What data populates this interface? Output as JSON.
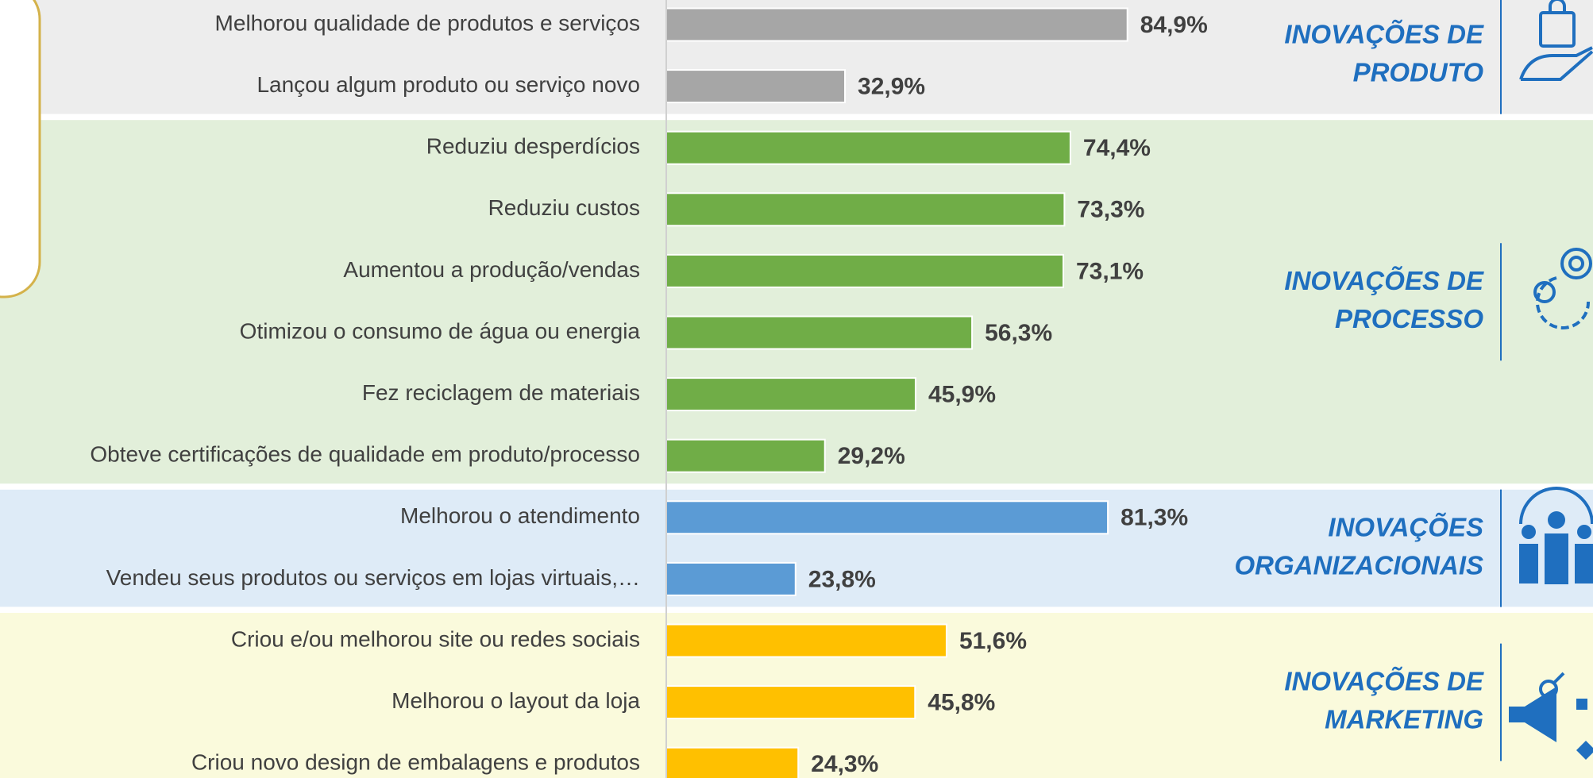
{
  "chart_data": {
    "type": "bar",
    "orientation": "horizontal",
    "xlim": [
      0,
      100
    ],
    "groups": [
      {
        "label_lines": [
          "INOVAÇÕES DE",
          "PRODUTO"
        ],
        "color": "#a6a6a6",
        "background": "#ededed",
        "categories": [
          "Melhorou qualidade de produtos e serviços",
          "Lançou algum produto ou serviço novo"
        ],
        "values": [
          84.9,
          32.9
        ],
        "value_labels": [
          "84,9%",
          "32,9%"
        ]
      },
      {
        "label_lines": [
          "INOVAÇÕES DE",
          "PROCESSO"
        ],
        "color": "#70ad47",
        "background": "#e2efda",
        "categories": [
          "Reduziu desperdícios",
          "Reduziu custos",
          "Aumentou a produção/vendas",
          "Otimizou o consumo de água ou energia",
          "Fez reciclagem de materiais",
          "Obteve certificações de qualidade em produto/processo"
        ],
        "values": [
          74.4,
          73.3,
          73.1,
          56.3,
          45.9,
          29.2
        ],
        "value_labels": [
          "74,4%",
          "73,3%",
          "73,1%",
          "56,3%",
          "45,9%",
          "29,2%"
        ]
      },
      {
        "label_lines": [
          "INOVAÇÕES",
          "ORGANIZACIONAIS"
        ],
        "color": "#5b9bd5",
        "background": "#deebf7",
        "categories": [
          "Melhorou o atendimento",
          "Vendeu seus produtos ou serviços em lojas virtuais,…"
        ],
        "values": [
          81.3,
          23.8
        ],
        "value_labels": [
          "81,3%",
          "23,8%"
        ]
      },
      {
        "label_lines": [
          "INOVAÇÕES DE",
          "MARKETING"
        ],
        "color": "#ffc000",
        "background": "#fafadc",
        "categories": [
          "Criou e/ou melhorou site ou redes sociais",
          "Melhorou o layout da loja",
          "Criou novo design de embalagens e produtos"
        ],
        "values": [
          51.6,
          45.8,
          24.3
        ],
        "value_labels": [
          "51,6%",
          "45,8%",
          "24,3%"
        ]
      }
    ]
  }
}
